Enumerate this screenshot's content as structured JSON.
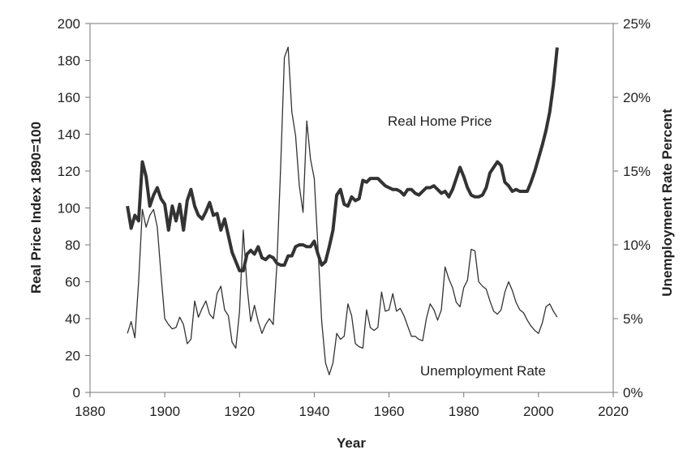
{
  "chart_data": {
    "type": "line",
    "xlabel": "Year",
    "ylabel_left": "Real Price Index 1890=100",
    "ylabel_right": "Unemployment Rate Percent",
    "xlim": [
      1880,
      2020
    ],
    "ylim_left": [
      0,
      200
    ],
    "ylim_right": [
      0,
      25
    ],
    "x_ticks": [
      "1880",
      "1900",
      "1920",
      "1940",
      "1960",
      "1980",
      "2000",
      "2020"
    ],
    "y_left_ticks": [
      "0",
      "20",
      "40",
      "60",
      "80",
      "100",
      "120",
      "140",
      "160",
      "180",
      "200"
    ],
    "y_right_ticks": [
      "0%",
      "5%",
      "10%",
      "15%",
      "20%",
      "25%"
    ],
    "grid": false,
    "series": [
      {
        "name": "Real Home Price",
        "axis": "left",
        "color": "#333333",
        "stroke": "thick",
        "x": [
          1890,
          1891,
          1892,
          1893,
          1894,
          1895,
          1896,
          1897,
          1898,
          1899,
          1900,
          1901,
          1902,
          1903,
          1904,
          1905,
          1906,
          1907,
          1908,
          1909,
          1910,
          1911,
          1912,
          1913,
          1914,
          1915,
          1916,
          1917,
          1918,
          1919,
          1920,
          1921,
          1922,
          1923,
          1924,
          1925,
          1926,
          1927,
          1928,
          1929,
          1930,
          1931,
          1932,
          1933,
          1934,
          1935,
          1936,
          1937,
          1938,
          1939,
          1940,
          1941,
          1942,
          1943,
          1944,
          1945,
          1946,
          1947,
          1948,
          1949,
          1950,
          1951,
          1952,
          1953,
          1954,
          1955,
          1956,
          1957,
          1958,
          1959,
          1960,
          1961,
          1962,
          1963,
          1964,
          1965,
          1966,
          1967,
          1968,
          1969,
          1970,
          1971,
          1972,
          1973,
          1974,
          1975,
          1976,
          1977,
          1978,
          1979,
          1980,
          1981,
          1982,
          1983,
          1984,
          1985,
          1986,
          1987,
          1988,
          1989,
          1990,
          1991,
          1992,
          1993,
          1994,
          1995,
          1996,
          1997,
          1998,
          1999,
          2000,
          2001,
          2002,
          2003,
          2004,
          2005
        ],
        "values": [
          101,
          89,
          96,
          93,
          125,
          117,
          101,
          107,
          111,
          105,
          102,
          88,
          101,
          93,
          102,
          88,
          104,
          110,
          101,
          96,
          94,
          98,
          103,
          96,
          97,
          88,
          94,
          85,
          76,
          71,
          66,
          66,
          75,
          77,
          75,
          79,
          73,
          72,
          74,
          73,
          70,
          69,
          69,
          74,
          74,
          79,
          80,
          80,
          79,
          79,
          82,
          75,
          69,
          71,
          79,
          88,
          107,
          110,
          102,
          101,
          106,
          104,
          105,
          115,
          114,
          116,
          116,
          116,
          114,
          112,
          111,
          110,
          110,
          109,
          107,
          110,
          110,
          108,
          107,
          109,
          111,
          111,
          112,
          110,
          108,
          109,
          106,
          110,
          116,
          122,
          117,
          111,
          107,
          106,
          106,
          107,
          111,
          119,
          122,
          125,
          123,
          114,
          112,
          109,
          110,
          109,
          109,
          109,
          114,
          120,
          127,
          134,
          142,
          152,
          167,
          187
        ]
      },
      {
        "name": "Unemployment Rate",
        "axis": "right",
        "color": "#333333",
        "stroke": "thin",
        "x": [
          1890,
          1891,
          1892,
          1893,
          1894,
          1895,
          1896,
          1897,
          1898,
          1899,
          1900,
          1901,
          1902,
          1903,
          1904,
          1905,
          1906,
          1907,
          1908,
          1909,
          1910,
          1911,
          1912,
          1913,
          1914,
          1915,
          1916,
          1917,
          1918,
          1919,
          1920,
          1921,
          1922,
          1923,
          1924,
          1925,
          1926,
          1927,
          1928,
          1929,
          1930,
          1931,
          1932,
          1933,
          1934,
          1935,
          1936,
          1937,
          1938,
          1939,
          1940,
          1941,
          1942,
          1943,
          1944,
          1945,
          1946,
          1947,
          1948,
          1949,
          1950,
          1951,
          1952,
          1953,
          1954,
          1955,
          1956,
          1957,
          1958,
          1959,
          1960,
          1961,
          1962,
          1963,
          1964,
          1965,
          1966,
          1967,
          1968,
          1969,
          1970,
          1971,
          1972,
          1973,
          1974,
          1975,
          1976,
          1977,
          1978,
          1979,
          1980,
          1981,
          1982,
          1983,
          1984,
          1985,
          1986,
          1987,
          1988,
          1989,
          1990,
          1991,
          1992,
          1993,
          1994,
          1995,
          1996,
          1997,
          1998,
          1999,
          2000,
          2001,
          2002,
          2003,
          2004,
          2005
        ],
        "values": [
          4.0,
          4.8,
          3.7,
          7.5,
          12.4,
          11.2,
          12.0,
          12.4,
          11.2,
          8.0,
          5.0,
          4.6,
          4.3,
          4.4,
          5.1,
          4.6,
          3.3,
          3.6,
          6.2,
          5.1,
          5.7,
          6.2,
          5.3,
          5.0,
          6.7,
          7.2,
          5.6,
          5.2,
          3.4,
          3.0,
          5.5,
          11.0,
          7.2,
          4.8,
          5.9,
          4.8,
          4.0,
          4.6,
          5.0,
          4.6,
          8.7,
          15.3,
          22.7,
          23.4,
          19.0,
          17.4,
          14.0,
          12.2,
          18.4,
          15.8,
          14.5,
          9.8,
          4.8,
          2.0,
          1.2,
          2.0,
          4.0,
          3.6,
          3.8,
          6.0,
          5.2,
          3.3,
          3.1,
          3.0,
          5.6,
          4.4,
          4.2,
          4.4,
          6.8,
          5.5,
          5.6,
          6.7,
          5.5,
          5.7,
          5.2,
          4.5,
          3.8,
          3.8,
          3.6,
          3.5,
          5.0,
          6.0,
          5.6,
          4.9,
          5.6,
          8.5,
          7.7,
          7.1,
          6.1,
          5.8,
          7.1,
          7.6,
          9.7,
          9.6,
          7.5,
          7.2,
          7.0,
          6.2,
          5.5,
          5.3,
          5.6,
          6.8,
          7.5,
          6.9,
          6.1,
          5.6,
          5.4,
          4.9,
          4.5,
          4.2,
          4.0,
          4.7,
          5.8,
          6.0,
          5.5,
          5.1
        ]
      }
    ]
  }
}
